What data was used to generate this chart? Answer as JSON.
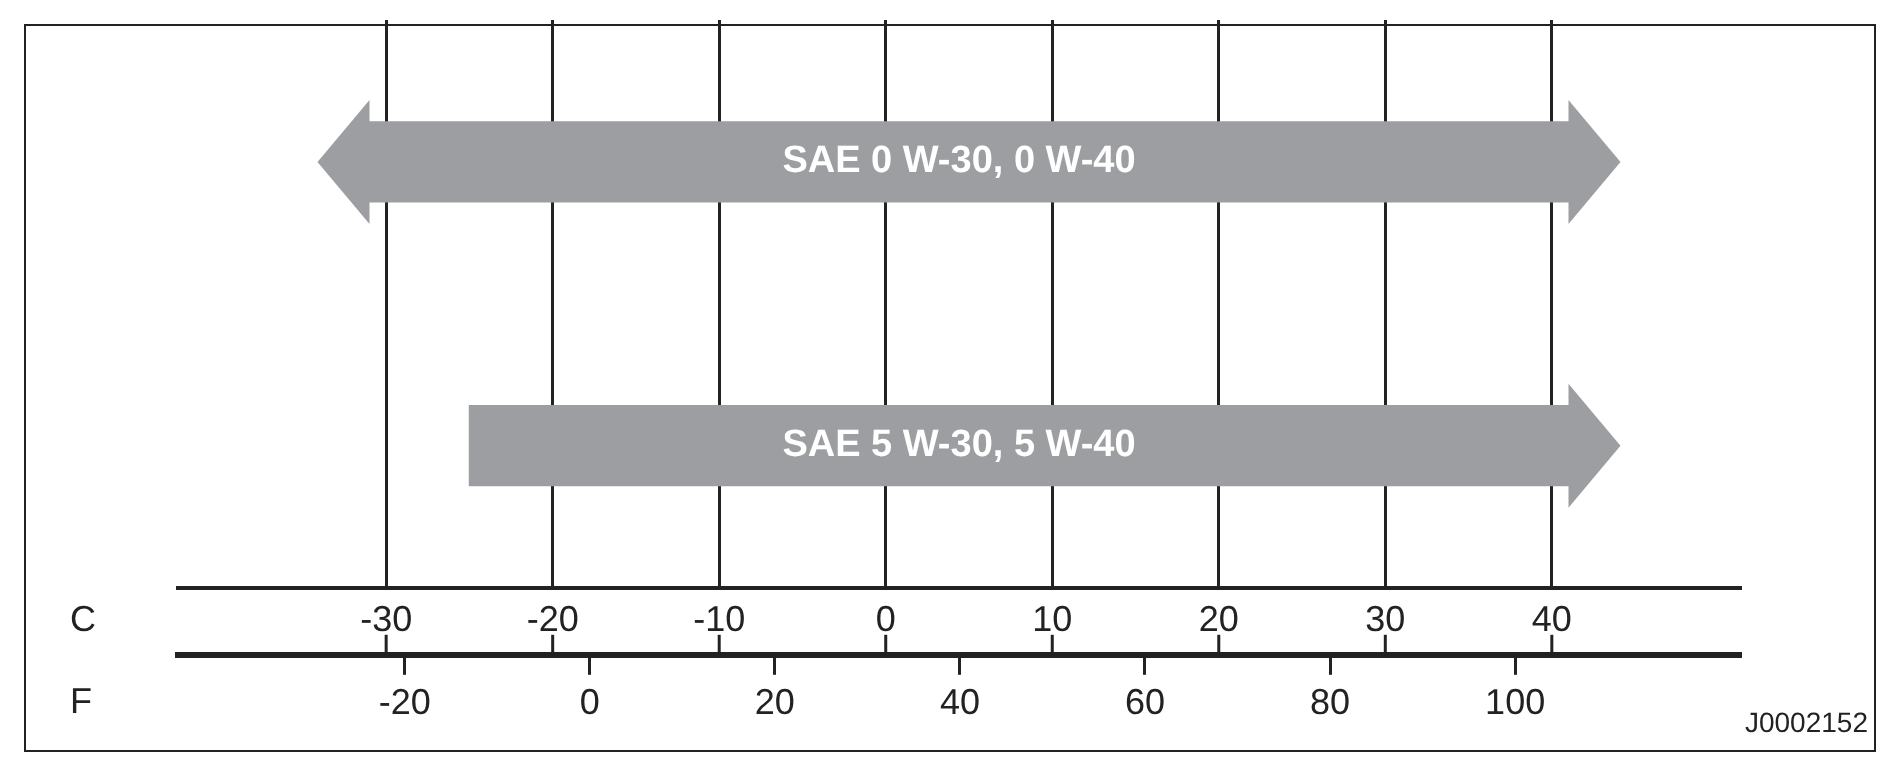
{
  "chart_data": {
    "type": "bar",
    "orientation": "horizontal",
    "categories": [
      "SAE 0 W-30, 0 W-40",
      "SAE 5 W-30, 5 W-40"
    ],
    "base": [
      -31,
      -25
    ],
    "values": [
      72,
      66
    ],
    "color": "#9d9ea1",
    "xlabel": "C",
    "x2label": "F",
    "xlim": [
      -42.5,
      51.3
    ],
    "xticks": [
      -30,
      -20,
      -10,
      0,
      10,
      20,
      30,
      40
    ],
    "x2lim": [
      -44.5,
      124.3
    ],
    "x2ticks": [
      -20,
      0,
      20,
      40,
      60,
      80,
      100
    ],
    "grid": "x",
    "legend": false,
    "annotations": [
      "J0002152"
    ]
  }
}
